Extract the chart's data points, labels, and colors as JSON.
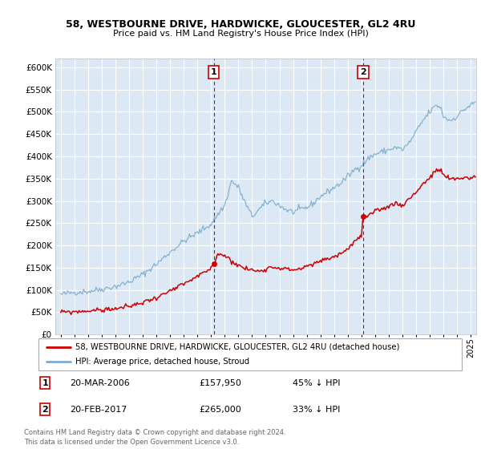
{
  "title1": "58, WESTBOURNE DRIVE, HARDWICKE, GLOUCESTER, GL2 4RU",
  "title2": "Price paid vs. HM Land Registry's House Price Index (HPI)",
  "legend_label1": "58, WESTBOURNE DRIVE, HARDWICKE, GLOUCESTER, GL2 4RU (detached house)",
  "legend_label2": "HPI: Average price, detached house, Stroud",
  "annotation1": {
    "num": "1",
    "date": "20-MAR-2006",
    "price": "£157,950",
    "pct": "45% ↓ HPI",
    "x_year": 2006.2
  },
  "annotation2": {
    "num": "2",
    "date": "20-FEB-2017",
    "price": "£265,000",
    "pct": "33% ↓ HPI",
    "x_year": 2017.12
  },
  "sale1_price": 157950,
  "sale2_price": 265000,
  "footer": "Contains HM Land Registry data © Crown copyright and database right 2024.\nThis data is licensed under the Open Government Licence v3.0.",
  "ylim": [
    0,
    620000
  ],
  "yticks": [
    0,
    50000,
    100000,
    150000,
    200000,
    250000,
    300000,
    350000,
    400000,
    450000,
    500000,
    550000,
    600000
  ],
  "xlim_left": 1994.6,
  "xlim_right": 2025.4,
  "bg_color": "#dce9f5",
  "grid_color": "#ffffff",
  "red_color": "#cc0000",
  "blue_color": "#7aabcc",
  "hpi_anchors": [
    [
      1995.0,
      90000
    ],
    [
      1996.0,
      95000
    ],
    [
      1997.0,
      97000
    ],
    [
      1998.0,
      102000
    ],
    [
      1999.0,
      108000
    ],
    [
      2000.0,
      118000
    ],
    [
      2001.0,
      135000
    ],
    [
      2002.0,
      158000
    ],
    [
      2003.0,
      185000
    ],
    [
      2004.0,
      210000
    ],
    [
      2005.0,
      228000
    ],
    [
      2006.0,
      248000
    ],
    [
      2006.5,
      270000
    ],
    [
      2007.0,
      290000
    ],
    [
      2007.5,
      345000
    ],
    [
      2008.0,
      330000
    ],
    [
      2008.5,
      295000
    ],
    [
      2009.0,
      265000
    ],
    [
      2009.5,
      280000
    ],
    [
      2010.0,
      295000
    ],
    [
      2010.5,
      300000
    ],
    [
      2011.0,
      290000
    ],
    [
      2011.5,
      280000
    ],
    [
      2012.0,
      275000
    ],
    [
      2012.5,
      280000
    ],
    [
      2013.0,
      285000
    ],
    [
      2013.5,
      295000
    ],
    [
      2014.0,
      310000
    ],
    [
      2014.5,
      320000
    ],
    [
      2015.0,
      330000
    ],
    [
      2015.5,
      340000
    ],
    [
      2016.0,
      355000
    ],
    [
      2016.5,
      370000
    ],
    [
      2017.0,
      380000
    ],
    [
      2017.5,
      395000
    ],
    [
      2018.0,
      405000
    ],
    [
      2018.5,
      410000
    ],
    [
      2019.0,
      415000
    ],
    [
      2019.5,
      420000
    ],
    [
      2020.0,
      415000
    ],
    [
      2020.5,
      430000
    ],
    [
      2021.0,
      455000
    ],
    [
      2021.5,
      480000
    ],
    [
      2022.0,
      500000
    ],
    [
      2022.5,
      515000
    ],
    [
      2022.8,
      510000
    ],
    [
      2023.0,
      490000
    ],
    [
      2023.5,
      480000
    ],
    [
      2024.0,
      490000
    ],
    [
      2024.5,
      505000
    ],
    [
      2025.0,
      515000
    ],
    [
      2025.3,
      520000
    ]
  ],
  "price_anchors": [
    [
      1995.0,
      50000
    ],
    [
      1996.0,
      51000
    ],
    [
      1997.0,
      53000
    ],
    [
      1998.0,
      55000
    ],
    [
      1999.0,
      58000
    ],
    [
      2000.0,
      63000
    ],
    [
      2001.0,
      72000
    ],
    [
      2002.0,
      83000
    ],
    [
      2003.0,
      97000
    ],
    [
      2004.0,
      113000
    ],
    [
      2005.0,
      130000
    ],
    [
      2006.0,
      148000
    ],
    [
      2006.2,
      157950
    ],
    [
      2006.5,
      182000
    ],
    [
      2007.0,
      178000
    ],
    [
      2007.5,
      165000
    ],
    [
      2008.0,
      155000
    ],
    [
      2008.5,
      148000
    ],
    [
      2009.0,
      145000
    ],
    [
      2009.5,
      142000
    ],
    [
      2010.0,
      148000
    ],
    [
      2010.5,
      152000
    ],
    [
      2011.0,
      150000
    ],
    [
      2011.5,
      147000
    ],
    [
      2012.0,
      145000
    ],
    [
      2012.5,
      148000
    ],
    [
      2013.0,
      152000
    ],
    [
      2013.5,
      158000
    ],
    [
      2014.0,
      165000
    ],
    [
      2014.5,
      170000
    ],
    [
      2015.0,
      175000
    ],
    [
      2015.5,
      182000
    ],
    [
      2016.0,
      192000
    ],
    [
      2016.5,
      210000
    ],
    [
      2017.0,
      220000
    ],
    [
      2017.12,
      265000
    ],
    [
      2017.5,
      265000
    ],
    [
      2018.0,
      275000
    ],
    [
      2018.5,
      282000
    ],
    [
      2019.0,
      288000
    ],
    [
      2019.5,
      295000
    ],
    [
      2020.0,
      290000
    ],
    [
      2020.5,
      305000
    ],
    [
      2021.0,
      320000
    ],
    [
      2021.5,
      338000
    ],
    [
      2022.0,
      352000
    ],
    [
      2022.5,
      368000
    ],
    [
      2022.8,
      370000
    ],
    [
      2023.0,
      358000
    ],
    [
      2023.5,
      348000
    ],
    [
      2024.0,
      350000
    ],
    [
      2024.5,
      352000
    ],
    [
      2025.0,
      352000
    ],
    [
      2025.3,
      353000
    ]
  ]
}
